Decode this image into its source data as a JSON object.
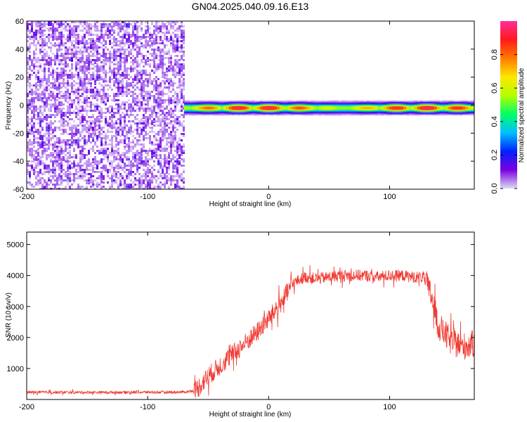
{
  "chart_data": [
    {
      "type": "heatmap",
      "title": "GN04.2025.040.09.16.E13",
      "xlabel": "Height of straight line (km)",
      "ylabel": "Frequency (Hz)",
      "xlim": [
        -200,
        170
      ],
      "ylim": [
        -60,
        60
      ],
      "xticks": [
        -200,
        -100,
        0,
        100
      ],
      "yticks": [
        60,
        40,
        20,
        0,
        -20,
        -40,
        -60
      ],
      "colorbar": {
        "label": "Normalized spectral amplitude",
        "range": [
          0,
          1
        ],
        "ticks": [
          0.0,
          0.2,
          0.4,
          0.6,
          0.8
        ],
        "colors": [
          "#dcdcf5",
          "#7b00e0",
          "#0022ff",
          "#00c0ff",
          "#00ff66",
          "#b4ff00",
          "#ffe600",
          "#ff7a00",
          "#ff1a1a",
          "#ff2d9a"
        ]
      },
      "regions": [
        {
          "name": "noise",
          "x_range": [
            -200,
            -70
          ],
          "freq_range": [
            -60,
            60
          ],
          "amplitude": 0.1
        },
        {
          "name": "signal",
          "x_range": [
            -70,
            170
          ],
          "center_freq": -2,
          "half_width_hz": 5,
          "peak_amplitude": 1.0
        }
      ]
    },
    {
      "type": "line",
      "xlabel": "Height of straight line (km)",
      "ylabel": "SNR (10 * v/v)",
      "xlim": [
        -200,
        170
      ],
      "ylim": [
        0,
        5400
      ],
      "xticks": [
        -200,
        -100,
        0,
        100
      ],
      "yticks": [
        5000,
        4000,
        3000,
        2000,
        1000
      ],
      "color": "#f03a32",
      "series": [
        {
          "x": [
            -200,
            -150,
            -100,
            -70,
            -60,
            -50,
            -40,
            -30,
            -20,
            -10,
            0,
            10,
            20,
            30,
            40,
            50,
            60,
            70,
            80,
            90,
            100,
            110,
            120,
            128,
            135,
            140,
            150,
            160,
            170
          ],
          "values": [
            230,
            230,
            235,
            240,
            300,
            750,
            1100,
            1450,
            1800,
            2150,
            2600,
            3100,
            3750,
            3950,
            3900,
            3950,
            4000,
            4000,
            4000,
            3950,
            4000,
            4000,
            3950,
            3950,
            3300,
            2400,
            1900,
            1700,
            1800
          ]
        }
      ]
    }
  ]
}
